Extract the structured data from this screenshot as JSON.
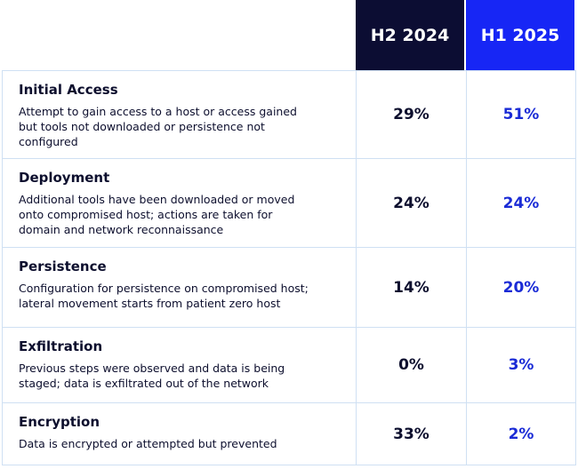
{
  "table": {
    "columns": [
      "H2 2024",
      "H1 2025"
    ],
    "rows": [
      {
        "title": "Initial Access",
        "description": "Attempt to gain access to a host or access gained but tools not downloaded or persistence not configured",
        "values": [
          "29%",
          "51%"
        ]
      },
      {
        "title": "Deployment",
        "description": "Additional tools have been downloaded or moved onto compromised host; actions are taken for domain and network reconnaissance",
        "values": [
          "24%",
          "24%"
        ]
      },
      {
        "title": "Persistence",
        "description": "Configuration for persistence on compromised host; lateral movement starts from patient zero host",
        "values": [
          "14%",
          "20%"
        ]
      },
      {
        "title": "Exfiltration",
        "description": "Previous steps were observed and data is being staged; data is exfiltrated out of the network",
        "values": [
          "0%",
          "3%"
        ]
      },
      {
        "title": "Encryption",
        "description": "Data is encrypted or attempted but prevented",
        "values": [
          "33%",
          "2%"
        ]
      }
    ]
  }
}
